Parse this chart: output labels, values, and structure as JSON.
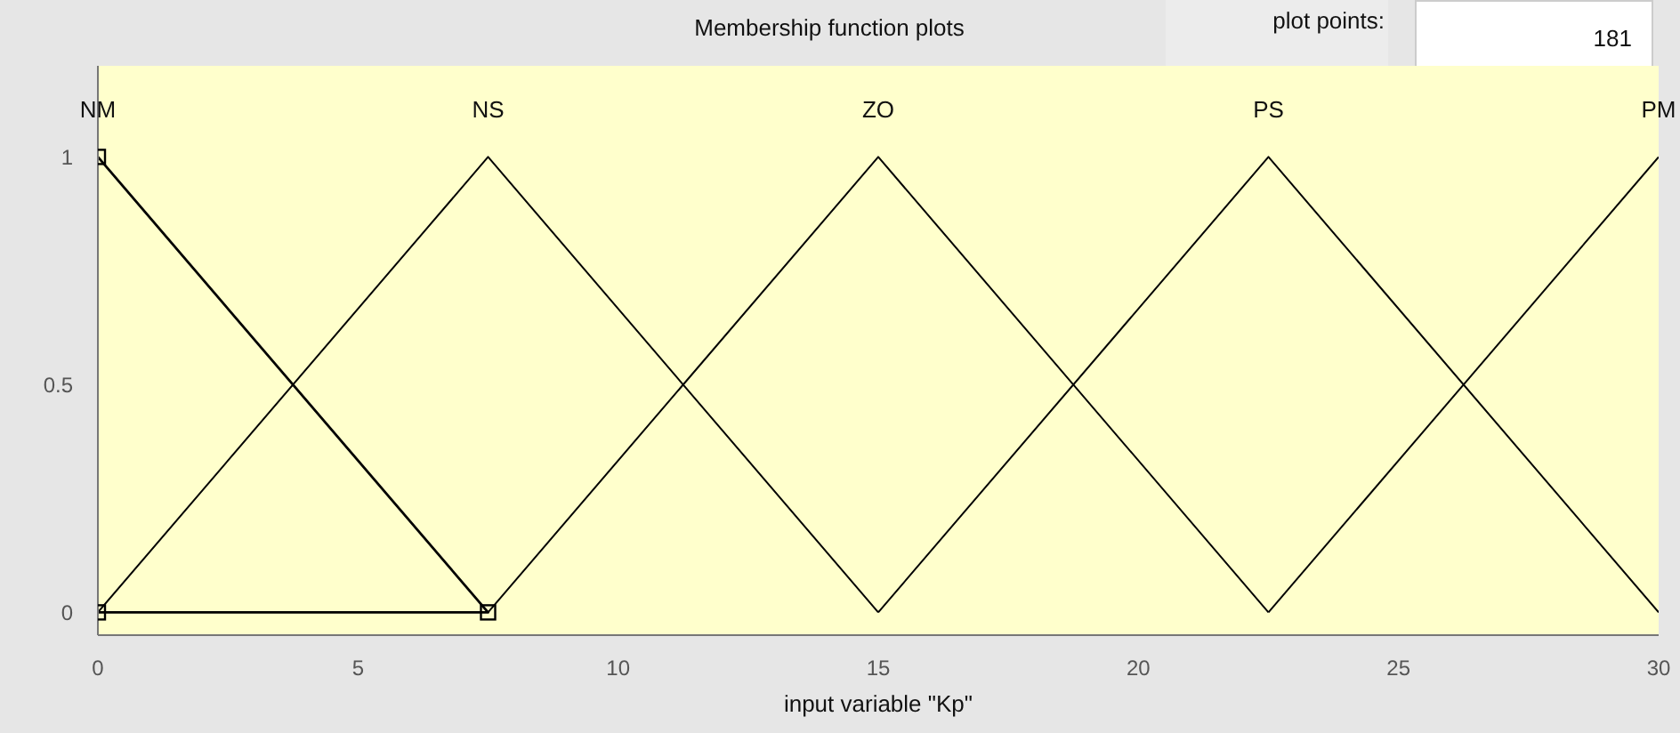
{
  "chart_data": {
    "type": "line",
    "title": "Membership function plots",
    "xlabel": "input variable \"Kp\"",
    "annotations": [
      "plot points:",
      "181"
    ],
    "xlim": [
      0,
      30
    ],
    "xticks": [
      0,
      5,
      10,
      15,
      20,
      25,
      30
    ],
    "ylim": [
      -0.05,
      1.2
    ],
    "yticks": [
      0,
      0.5,
      1
    ],
    "line_style": "solid",
    "series": [
      {
        "name": "NM",
        "color": "#000000",
        "x": [
          0,
          7.5,
          0
        ],
        "values": [
          1,
          0,
          0
        ],
        "marker": "square"
      },
      {
        "name": "NS",
        "color": "#000000",
        "x": [
          0,
          7.5,
          15
        ],
        "values": [
          0,
          1,
          0
        ]
      },
      {
        "name": "ZO",
        "color": "#000000",
        "x": [
          7.5,
          15,
          22.5
        ],
        "values": [
          0,
          1,
          0
        ]
      },
      {
        "name": "PS",
        "color": "#000000",
        "x": [
          15,
          22.5,
          30
        ],
        "values": [
          0,
          1,
          0
        ]
      },
      {
        "name": "PM",
        "color": "#000000",
        "x": [
          22.5,
          30
        ],
        "values": [
          0,
          1
        ]
      }
    ]
  }
}
